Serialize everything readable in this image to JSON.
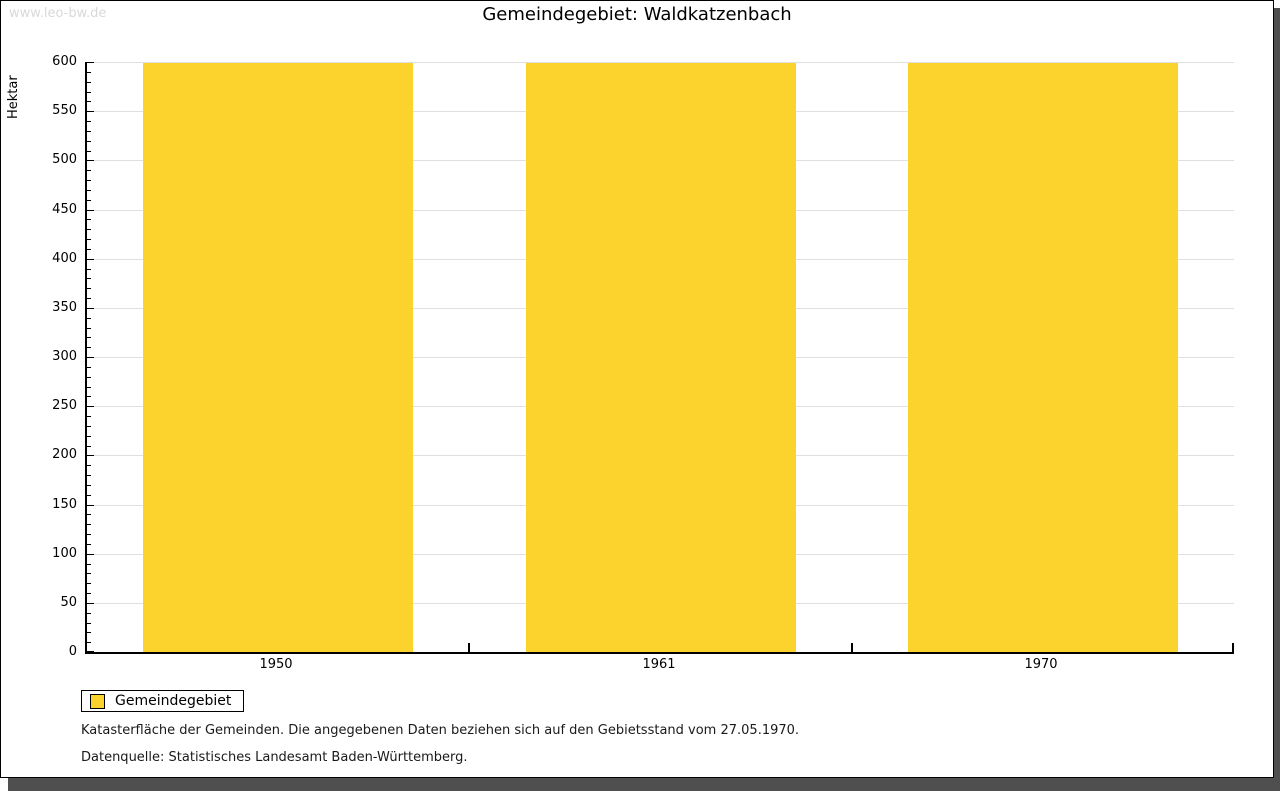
{
  "watermark": "www.leo-bw.de",
  "title": "Gemeindegebiet: Waldkatzenbach",
  "chart_data": {
    "type": "bar",
    "title": "Gemeindegebiet: Waldkatzenbach",
    "categories": [
      "1950",
      "1961",
      "1970"
    ],
    "series": [
      {
        "name": "Gemeindegebiet",
        "values": [
          599,
          599,
          599
        ]
      }
    ],
    "xlabel": "",
    "ylabel": "Hektar",
    "ylim": [
      0,
      600
    ],
    "y_major_step": 50,
    "y_minor_step": 10,
    "grid": true,
    "legend_position": "bottom-left",
    "bar_color": "#fcd32d",
    "gridline_color": "#e0e0e0"
  },
  "legend": {
    "items": [
      {
        "label": "Gemeindegebiet",
        "color": "#fcd32d"
      }
    ]
  },
  "footnotes": {
    "line1": "Katasterfläche der Gemeinden. Die angegebenen Daten beziehen sich auf den Gebietsstand vom 27.05.1970.",
    "line2": "Datenquelle: Statistisches Landesamt Baden-Württemberg."
  }
}
